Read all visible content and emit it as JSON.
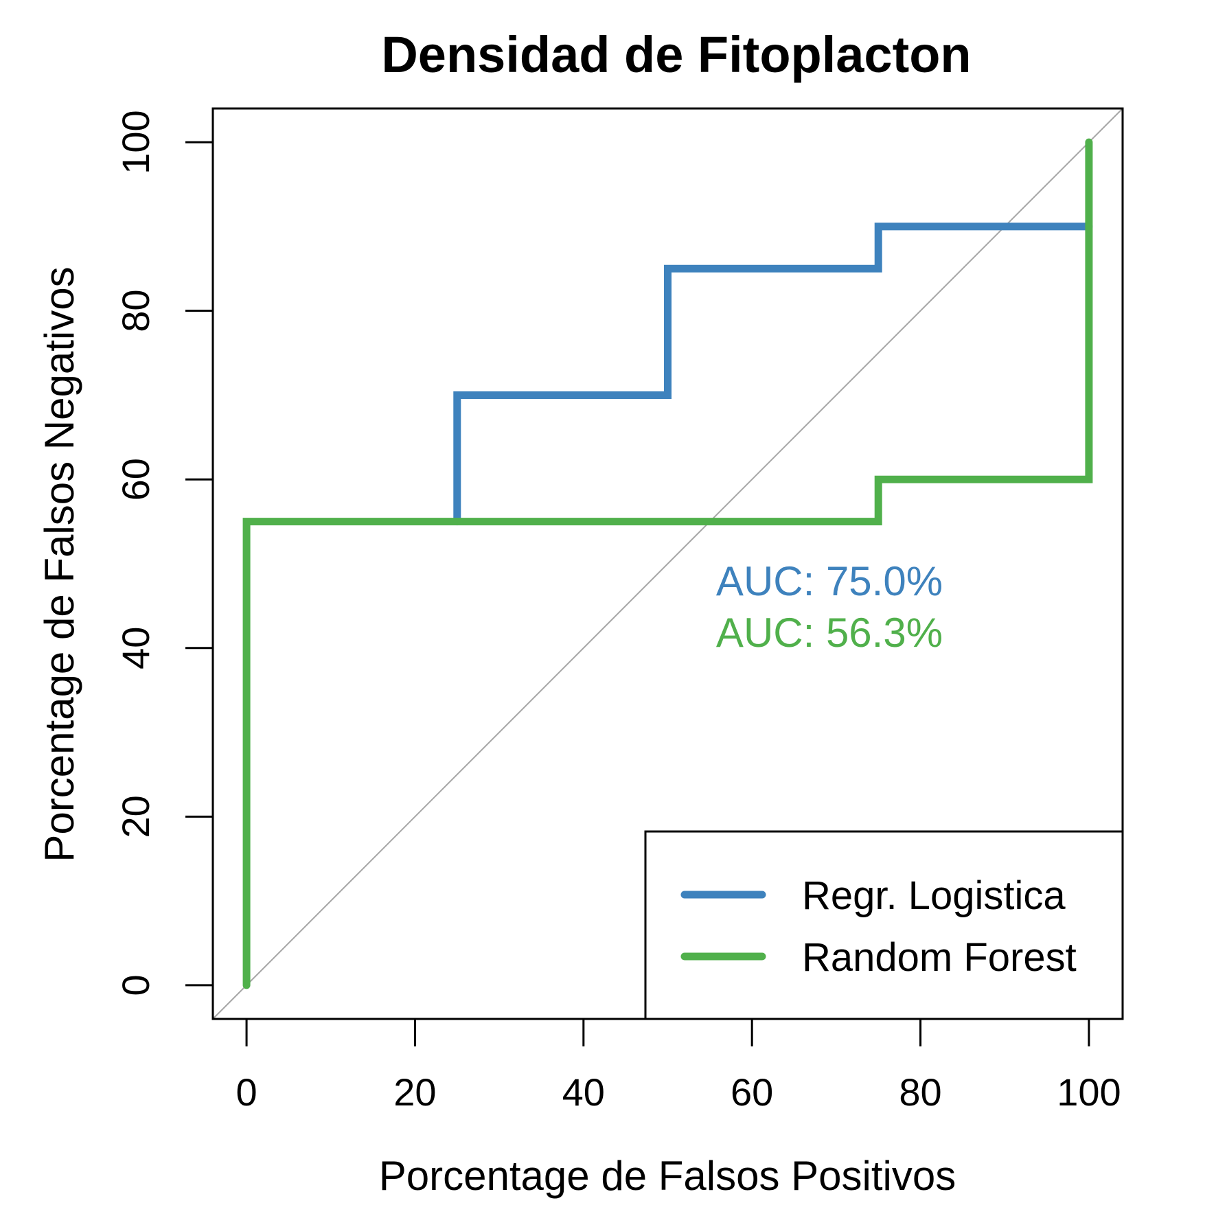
{
  "chart_data": {
    "type": "line",
    "title": "Densidad de Fitoplacton",
    "xlabel": "Porcentage de Falsos Positivos",
    "ylabel": "Porcentage de Falsos Negativos",
    "xlim": [
      -4,
      104
    ],
    "ylim": [
      -4,
      104
    ],
    "xticks": [
      0,
      20,
      40,
      60,
      80,
      100
    ],
    "yticks": [
      0,
      20,
      40,
      60,
      80,
      100
    ],
    "xtick_labels": [
      "0",
      "20",
      "40",
      "60",
      "80",
      "100"
    ],
    "ytick_labels": [
      "0",
      "20",
      "40",
      "60",
      "80",
      "100"
    ],
    "reference_line": {
      "from": [
        -4,
        -4
      ],
      "to": [
        104,
        104
      ],
      "color": "#a6a6a6"
    },
    "series": [
      {
        "name": "Regr. Logistica",
        "color": "#3e82bd",
        "points": [
          [
            25,
            55
          ],
          [
            25,
            70
          ],
          [
            50,
            70
          ],
          [
            50,
            85
          ],
          [
            75,
            85
          ],
          [
            75,
            90
          ],
          [
            100,
            90
          ]
        ]
      },
      {
        "name": "Random Forest",
        "color": "#50b04b",
        "points": [
          [
            0,
            0
          ],
          [
            0,
            55
          ],
          [
            75,
            55
          ],
          [
            75,
            60
          ],
          [
            100,
            60
          ],
          [
            100,
            100
          ]
        ]
      }
    ],
    "annotations": [
      {
        "text": "AUC: 75.0%",
        "color": "#3e82bd"
      },
      {
        "text": "AUC: 56.3%",
        "color": "#50b04b"
      }
    ],
    "legend_placement": "bottom-right",
    "grid": false
  }
}
